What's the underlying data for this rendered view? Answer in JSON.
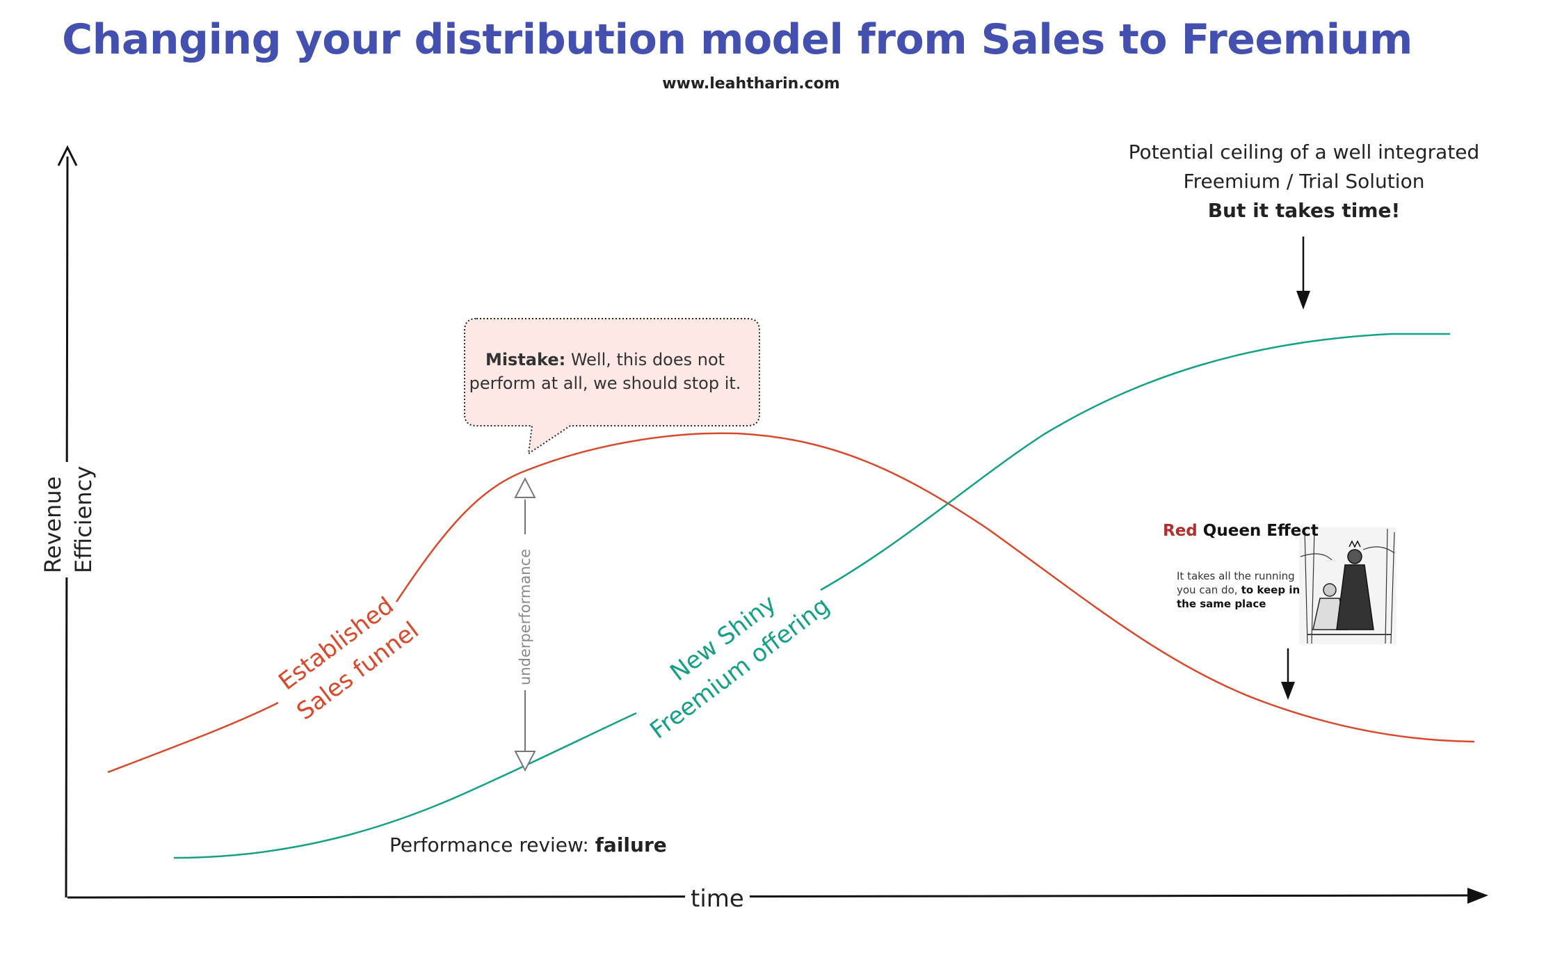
{
  "title": "Changing your distribution model from Sales to Freemium",
  "subtitle": "www.leahtharin.com",
  "axes": {
    "y_label_line1": "Revenue",
    "y_label_line2": "Efficiency",
    "x_label": "time"
  },
  "curves": {
    "sales": {
      "label_line1": "Established",
      "label_line2": "Sales funnel",
      "color": "#d9482a"
    },
    "freemium": {
      "label_line1": "New Shiny",
      "label_line2": "Freemium offering",
      "color": "#13a085"
    }
  },
  "callout": {
    "bold": "Mistake:",
    "text_line1": " Well, this does not",
    "text_line2": "perform at all, we should stop it.",
    "fill": "#fde8e6"
  },
  "gap_label": "underperformance",
  "performance_review": {
    "prefix": "Performance review: ",
    "bold": "failure"
  },
  "ceiling_note": {
    "line1": "Potential ceiling of a well integrated",
    "line2": "Freemium / Trial Solution",
    "bold": "But it takes time!"
  },
  "red_queen": {
    "title_red": "Red",
    "title_rest": " Queen Effect",
    "body": "It takes all the running you can do,",
    "body_bold": " to keep in the same place"
  }
}
